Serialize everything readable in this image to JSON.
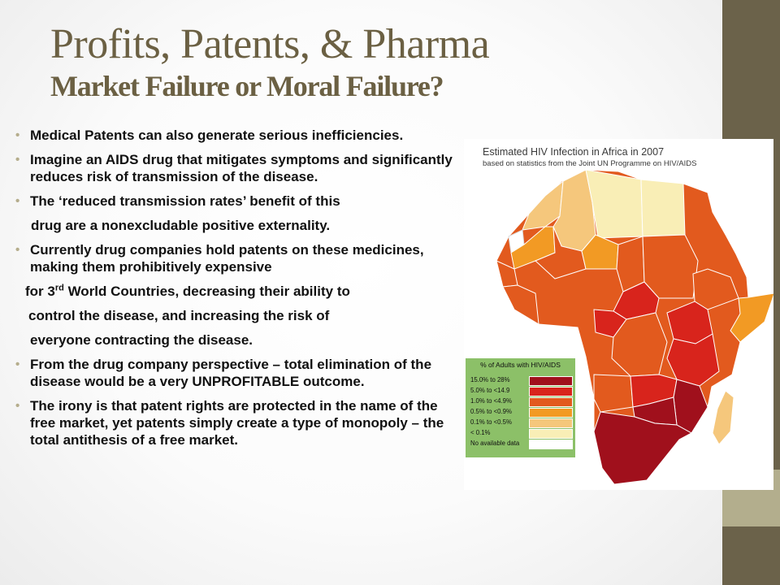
{
  "title": {
    "line1": "Profits, Patents, & Pharma",
    "line2": "Market Failure or Moral Failure?"
  },
  "bullets": [
    "Medical Patents can also generate serious inefficiencies.",
    "Imagine an AIDS drug that mitigates symptoms and significantly reduces risk of transmission of the disease.",
    "The ‘reduced transmission rates’ benefit of this",
    "drug are a nonexcludable positive externality.",
    "Currently drug companies hold patents on these medicines, making them prohibitively expensive",
    "for 3",
    "rd",
    " World Countries, decreasing their ability to",
    "control the disease, and increasing the risk of",
    "everyone contracting the disease.",
    "From the drug company perspective – total elimination of the disease would be a very UNPROFITABLE outcome.",
    " The irony is that patent rights are protected in the name of the free market, yet patents simply create a type of monopoly – the total antithesis of a free market."
  ],
  "map": {
    "title": "Estimated HIV Infection in Africa in 2007",
    "subtitle": "based on statistics from the Joint UN Programme on HIV/AIDS",
    "legend_title": "% of Adults with HIV/AIDS",
    "legend": [
      {
        "label": "15.0% to  28%",
        "color": "#a0101c"
      },
      {
        "label": "5.0% to <14.9",
        "color": "#d8241c"
      },
      {
        "label": "1.0% to <4.9%",
        "color": "#e25a1e"
      },
      {
        "label": "0.5% to <0.9%",
        "color": "#f29a24"
      },
      {
        "label": "0.1% to <0.5%",
        "color": "#f5c77c"
      },
      {
        "label": "< 0.1%",
        "color": "#f9eeb6"
      },
      {
        "label": "No available data",
        "color": "#ffffff"
      }
    ]
  },
  "colors": {
    "title": "#6b6043",
    "band_dark": "#6b624a",
    "band_light": "#b3ae8d",
    "bullet_dot": "#b5ad8c",
    "legend_bg": "#8cc068"
  }
}
